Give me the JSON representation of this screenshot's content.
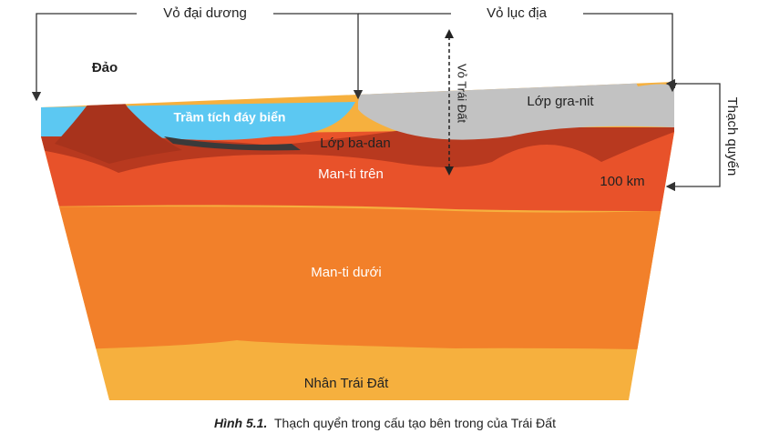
{
  "labels": {
    "oceanic_crust": "Vỏ đại dương",
    "continental_crust": "Vỏ lục địa",
    "island": "Đảo",
    "sediment": "Trầm tích đáy biển",
    "basalt": "Lớp ba-dan",
    "earth_crust": "Vỏ Trái Đất",
    "granite": "Lớp gra-nit",
    "lithosphere": "Thạch quyển",
    "upper_mantle": "Man-ti trên",
    "depth": "100 km",
    "lower_mantle": "Man-ti dưới",
    "core": "Nhân Trái Đất"
  },
  "caption": {
    "number": "Hình 5.1.",
    "text": "Thạch quyển trong cấu tạo bên trong của Trái Đất"
  }
}
